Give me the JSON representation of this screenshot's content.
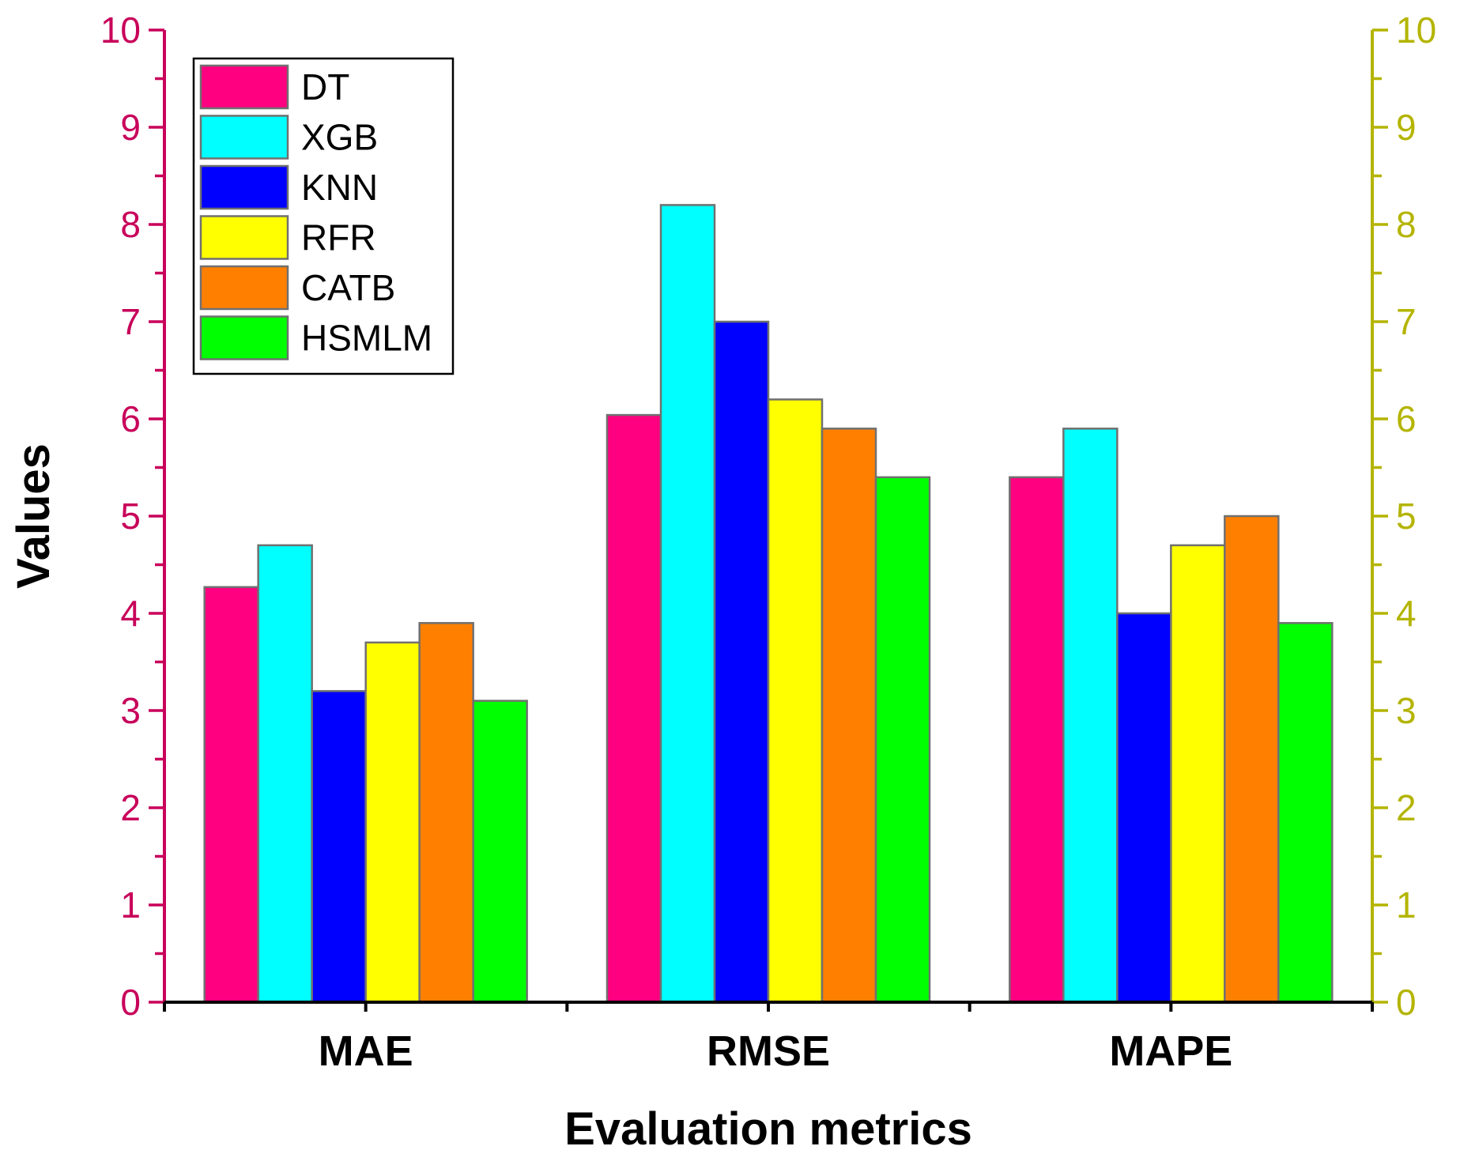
{
  "chart_data": {
    "type": "bar",
    "categories": [
      "MAE",
      "RMSE",
      "MAPE"
    ],
    "series": [
      {
        "name": "DT",
        "color": "#ff0080",
        "values": [
          4.27,
          6.04,
          5.4
        ]
      },
      {
        "name": "XGB",
        "color": "#00ffff",
        "values": [
          4.7,
          8.2,
          5.9
        ]
      },
      {
        "name": "KNN",
        "color": "#0000ff",
        "values": [
          3.2,
          7.0,
          4.0
        ]
      },
      {
        "name": "RFR",
        "color": "#ffff00",
        "values": [
          3.7,
          6.2,
          4.7
        ]
      },
      {
        "name": "CATB",
        "color": "#ff8000",
        "values": [
          3.9,
          5.9,
          5.0
        ]
      },
      {
        "name": "HSMLM",
        "color": "#00ff00",
        "values": [
          3.1,
          5.4,
          3.9
        ]
      }
    ],
    "xlabel": "Evaluation metrics",
    "ylabel": "Values",
    "ylim": [
      0,
      10
    ],
    "yticks": [
      "0",
      "1",
      "2",
      "3",
      "4",
      "5",
      "6",
      "7",
      "8",
      "9",
      "10"
    ],
    "y2lim": [
      0,
      10
    ],
    "y2ticks": [
      "0",
      "1",
      "2",
      "3",
      "4",
      "5",
      "6",
      "7",
      "8",
      "9",
      "10"
    ],
    "legend_position": "top-left",
    "colors": {
      "left_axis": "#c8005a",
      "right_axis": "#b4b400",
      "bar_edge": "#707070"
    }
  }
}
